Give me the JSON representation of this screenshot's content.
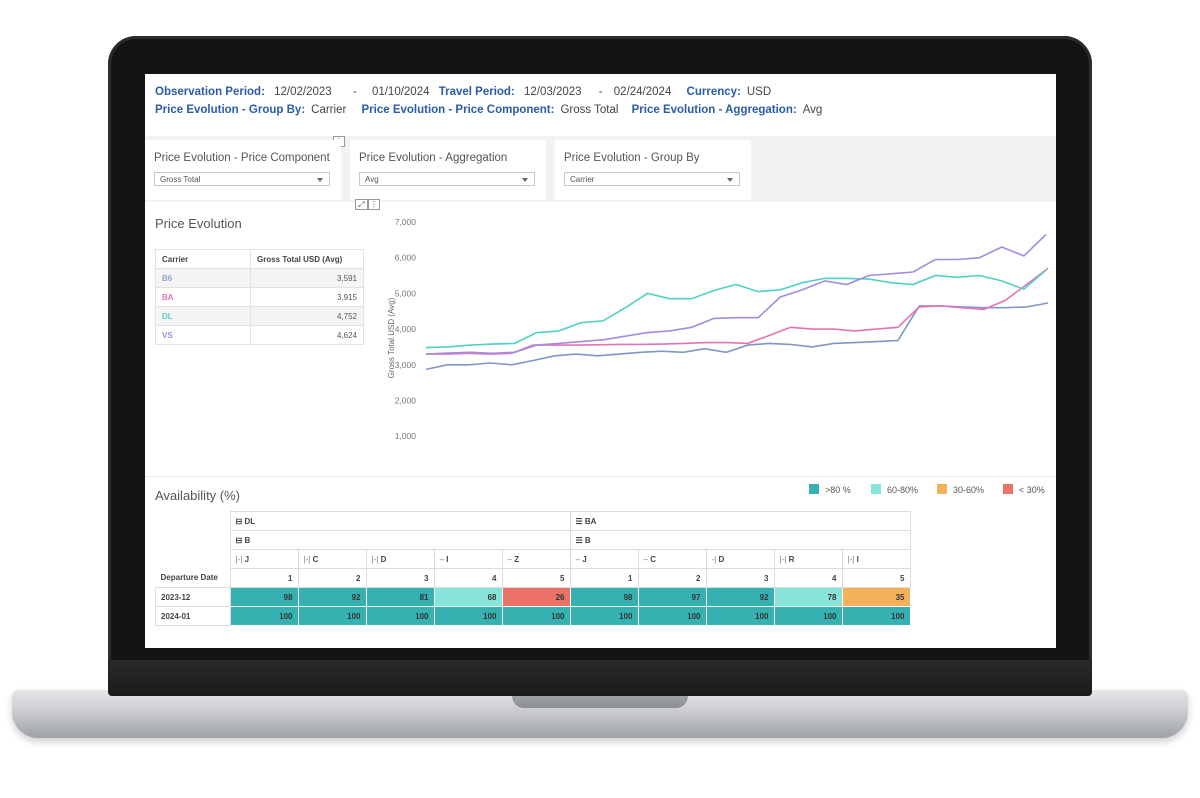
{
  "header": {
    "observation_label": "Observation Period:",
    "observation_start": "12/02/2023",
    "observation_sep": "-",
    "observation_end": "01/10/2024",
    "travel_label": "Travel Period:",
    "travel_start": "12/03/2023",
    "travel_sep": "-",
    "travel_end": "02/24/2024",
    "currency_label": "Currency:",
    "currency_value": "USD",
    "group_by_label": "Price Evolution - Group By:",
    "group_by_value": "Carrier",
    "price_component_label": "Price Evolution - Price Component:",
    "price_component_value": "Gross Total",
    "aggregation_label": "Price Evolution - Aggregation:",
    "aggregation_value": "Avg"
  },
  "filters": [
    {
      "label": "Price Evolution - Price Component",
      "value": "Gross Total"
    },
    {
      "label": "Price Evolution - Aggregation",
      "value": "Avg"
    },
    {
      "label": "Price Evolution - Group By",
      "value": "Carrier"
    }
  ],
  "icons": {
    "more": "⋮",
    "expand": "⤢"
  },
  "price_evolution": {
    "title": "Price Evolution",
    "table_headers": [
      "Carrier",
      "Gross Total USD (Avg)"
    ],
    "rows": [
      {
        "carrier": "B6",
        "value": "3,591",
        "color": "#8fa9d2"
      },
      {
        "carrier": "BA",
        "value": "3,915",
        "color": "#e573b8"
      },
      {
        "carrier": "DL",
        "value": "4,752",
        "color": "#4fd1c5"
      },
      {
        "carrier": "VS",
        "value": "4,624",
        "color": "#a58be0"
      }
    ]
  },
  "chart_data": {
    "type": "line",
    "title": "",
    "xlabel": "",
    "ylabel": "Gross Total USD (Avg)",
    "yticks": [
      "1,000",
      "2,000",
      "3,000",
      "4,000",
      "5,000",
      "6,000",
      "7,000"
    ],
    "ylim": [
      500,
      7000
    ],
    "grid": false,
    "series": [
      {
        "color": "#7f97c7",
        "values": [
          2870,
          3000,
          3000,
          3050,
          3000,
          3120,
          3250,
          3300,
          3250,
          3300,
          3350,
          3380,
          3350,
          3450,
          3350,
          3550,
          3600,
          3570,
          3500,
          3600,
          3620,
          3650,
          3680,
          4650,
          4650,
          4620,
          4600,
          4600,
          4620,
          4730
        ]
      },
      {
        "color": "#e573b8",
        "values": [
          3300,
          3300,
          3320,
          3300,
          3320,
          3550,
          3550,
          3550,
          3560,
          3570,
          3570,
          3580,
          3600,
          3620,
          3620,
          3600,
          3820,
          4050,
          4000,
          4000,
          3950,
          4000,
          4050,
          4620,
          4650,
          4600,
          4550,
          4800,
          5250,
          5700
        ]
      },
      {
        "color": "#4fd1c5",
        "values": [
          3480,
          3500,
          3550,
          3580,
          3600,
          3900,
          3950,
          4180,
          4230,
          4600,
          5000,
          4850,
          4850,
          5080,
          5250,
          5050,
          5100,
          5300,
          5420,
          5420,
          5400,
          5300,
          5250,
          5500,
          5450,
          5500,
          5350,
          5120,
          5650
        ]
      },
      {
        "color": "#a58be0",
        "values": [
          3300,
          3330,
          3350,
          3320,
          3350,
          3550,
          3600,
          3650,
          3700,
          3800,
          3900,
          3950,
          4050,
          4300,
          4320,
          4320,
          4900,
          5100,
          5350,
          5250,
          5500,
          5550,
          5600,
          5950,
          5950,
          6000,
          6300,
          6050,
          6650
        ]
      }
    ]
  },
  "availability": {
    "title": "Availability (%)",
    "legend": [
      {
        "label": ">80 %",
        "color": "#35b1b1"
      },
      {
        "label": "60-80%",
        "color": "#88e3da"
      },
      {
        "label": "30-60%",
        "color": "#f4b159"
      },
      {
        "label": "< 30%",
        "color": "#ec7166"
      }
    ],
    "carrier_groups": [
      {
        "icon": "⊟",
        "name": "DL",
        "sub_icon": "⊟",
        "sub": "B"
      },
      {
        "icon": "☰",
        "name": "BA",
        "sub_icon": "☰",
        "sub": "B"
      }
    ],
    "classes": [
      {
        "icon": "|-|",
        "code": "J"
      },
      {
        "icon": "|-|",
        "code": "C"
      },
      {
        "icon": "|-|",
        "code": "D"
      },
      {
        "icon": "–",
        "code": "I"
      },
      {
        "icon": "–",
        "code": "Z"
      },
      {
        "icon": "–",
        "code": "J"
      },
      {
        "icon": "–",
        "code": "C"
      },
      {
        "icon": "-|",
        "code": "D"
      },
      {
        "icon": "|-|",
        "code": "R"
      },
      {
        "icon": "|-|",
        "code": "I"
      }
    ],
    "row_header": "Departure Date",
    "positions": [
      "1",
      "2",
      "3",
      "4",
      "5",
      "1",
      "2",
      "3",
      "4",
      "5"
    ],
    "rows": [
      {
        "date": "2023-12",
        "values": [
          "98",
          "92",
          "81",
          "68",
          "26",
          "98",
          "97",
          "92",
          "78",
          "35"
        ],
        "colors": [
          "#35b1b1",
          "#35b1b1",
          "#35b1b1",
          "#88e3da",
          "#ec7166",
          "#35b1b1",
          "#35b1b1",
          "#35b1b1",
          "#88e3da",
          "#f4b159"
        ]
      },
      {
        "date": "2024-01",
        "values": [
          "100",
          "100",
          "100",
          "100",
          "100",
          "100",
          "100",
          "100",
          "100",
          "100"
        ],
        "colors": [
          "#35b1b1",
          "#35b1b1",
          "#35b1b1",
          "#35b1b1",
          "#35b1b1",
          "#35b1b1",
          "#35b1b1",
          "#35b1b1",
          "#35b1b1",
          "#35b1b1"
        ]
      }
    ]
  }
}
